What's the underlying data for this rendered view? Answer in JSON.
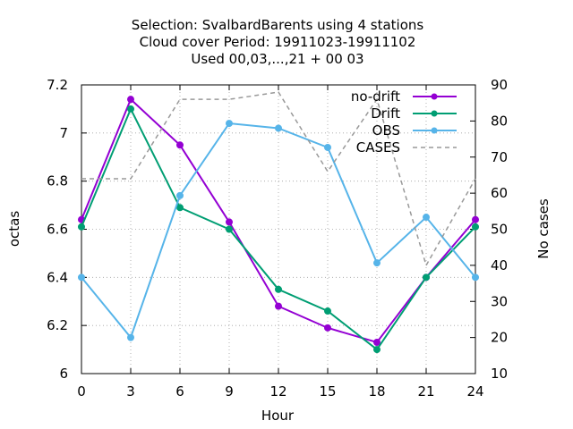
{
  "chart_data": {
    "type": "line",
    "title_lines": [
      "Selection: SvalbardBarents using     4 stations",
      "Cloud cover   Period: 19911023-19911102",
      "Used  00,03,...,21  + 00 03"
    ],
    "xlabel": "Hour",
    "ylabel": "octas",
    "y2label": "No cases",
    "xlim": [
      0,
      24
    ],
    "ylim": [
      6,
      7.2
    ],
    "y2lim": [
      10,
      90
    ],
    "x_ticks": [
      0,
      3,
      6,
      9,
      12,
      15,
      18,
      21,
      24
    ],
    "y_ticks": [
      6,
      6.2,
      6.4,
      6.6,
      6.8,
      7,
      7.2
    ],
    "y_tick_labels": [
      "6",
      "6.2",
      "6.4",
      "6.6",
      "6.8",
      "7",
      "7.2"
    ],
    "y2_ticks": [
      10,
      20,
      30,
      40,
      50,
      60,
      70,
      80,
      90
    ],
    "grid": true,
    "legend_position": "top-right",
    "x": [
      0,
      3,
      6,
      9,
      12,
      15,
      18,
      21,
      24
    ],
    "series": [
      {
        "name": "no-drift",
        "axis": "y",
        "color": "#9400d3",
        "style": "solid",
        "marker": "circle",
        "values": [
          6.64,
          7.14,
          6.95,
          6.63,
          6.28,
          6.19,
          6.13,
          6.4,
          6.64
        ]
      },
      {
        "name": "Drift",
        "axis": "y",
        "color": "#009e73",
        "style": "solid",
        "marker": "circle",
        "values": [
          6.61,
          7.1,
          6.69,
          6.6,
          6.35,
          6.26,
          6.1,
          6.4,
          6.61
        ]
      },
      {
        "name": "OBS",
        "axis": "y",
        "color": "#56b4e9",
        "style": "solid",
        "marker": "circle",
        "values": [
          6.4,
          6.15,
          6.74,
          7.04,
          7.02,
          6.94,
          6.46,
          6.65,
          6.4
        ]
      },
      {
        "name": "CASES",
        "axis": "y2",
        "color": "#999999",
        "style": "dashed",
        "marker": "none",
        "values": [
          64,
          64,
          86,
          86,
          88,
          66,
          86,
          40,
          64
        ]
      }
    ]
  }
}
